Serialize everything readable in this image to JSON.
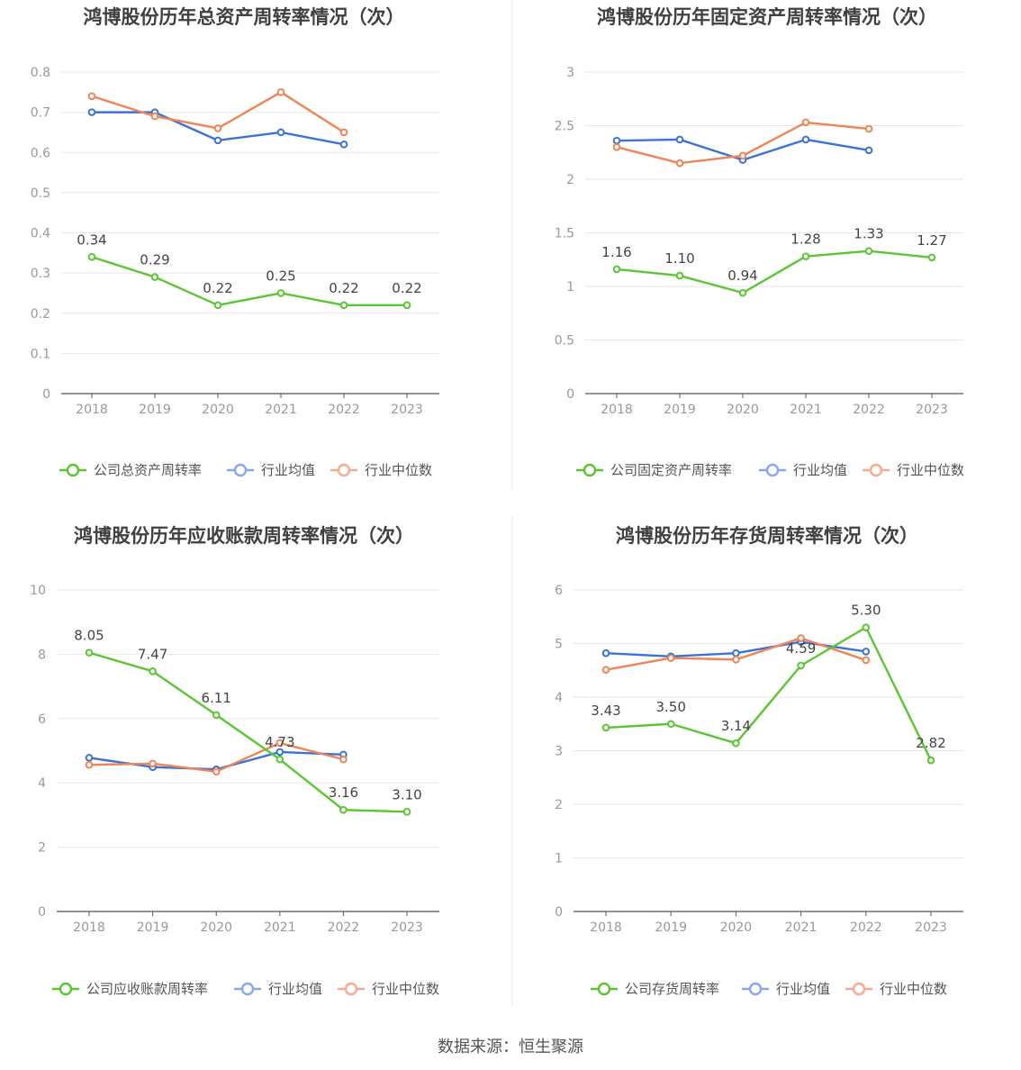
{
  "colors": {
    "company": "#5ac632",
    "industry_avg": "#3a72d8",
    "industry_median": "#f08454",
    "legend_avg": "#87a8ea",
    "legend_median": "#f6ab90",
    "grid": "#e6e6ee",
    "axis": "#555555",
    "tick_text": "#999999",
    "title_text": "#404040",
    "divider": "#e8e8e8"
  },
  "source_text": "数据来源：恒生聚源",
  "chart_data": [
    {
      "type": "line",
      "title": "鸿博股份历年总资产周转率情况（次）",
      "categories": [
        "2018",
        "2019",
        "2020",
        "2021",
        "2022",
        "2023"
      ],
      "ylim": [
        0,
        0.8
      ],
      "yticks": [
        0,
        0.1,
        0.2,
        0.3,
        0.4,
        0.5,
        0.6,
        0.7,
        0.8
      ],
      "ytick_labels": [
        "0",
        "0.1",
        "0.2",
        "0.3",
        "0.4",
        "0.5",
        "0.6",
        "0.7",
        "0.8"
      ],
      "grid": true,
      "legend_position": "bottom",
      "series": [
        {
          "key": "company",
          "name": "公司总资产周转率",
          "values": [
            0.34,
            0.29,
            0.22,
            0.25,
            0.22,
            0.22
          ],
          "labels": [
            "0.34",
            "0.29",
            "0.22",
            "0.25",
            "0.22",
            "0.22"
          ]
        },
        {
          "key": "industry_avg",
          "name": "行业均值",
          "values": [
            0.7,
            0.7,
            0.63,
            0.65,
            0.62,
            null
          ]
        },
        {
          "key": "industry_median",
          "name": "行业中位数",
          "values": [
            0.74,
            0.69,
            0.66,
            0.75,
            0.65,
            null
          ]
        }
      ]
    },
    {
      "type": "line",
      "title": "鸿博股份历年固定资产周转率情况（次）",
      "categories": [
        "2018",
        "2019",
        "2020",
        "2021",
        "2022",
        "2023"
      ],
      "ylim": [
        0,
        3
      ],
      "yticks": [
        0,
        0.5,
        1,
        1.5,
        2,
        2.5,
        3
      ],
      "ytick_labels": [
        "0",
        "0.5",
        "1",
        "1.5",
        "2",
        "2.5",
        "3"
      ],
      "grid": true,
      "legend_position": "bottom",
      "series": [
        {
          "key": "company",
          "name": "公司固定资产周转率",
          "values": [
            1.16,
            1.1,
            0.94,
            1.28,
            1.33,
            1.27
          ],
          "labels": [
            "1.16",
            "1.10",
            "0.94",
            "1.28",
            "1.33",
            "1.27"
          ]
        },
        {
          "key": "industry_avg",
          "name": "行业均值",
          "values": [
            2.36,
            2.37,
            2.18,
            2.37,
            2.27,
            null
          ]
        },
        {
          "key": "industry_median",
          "name": "行业中位数",
          "values": [
            2.3,
            2.15,
            2.22,
            2.53,
            2.47,
            null
          ]
        }
      ]
    },
    {
      "type": "line",
      "title": "鸿博股份历年应收账款周转率情况（次）",
      "categories": [
        "2018",
        "2019",
        "2020",
        "2021",
        "2022",
        "2023"
      ],
      "ylim": [
        0,
        10
      ],
      "yticks": [
        0,
        2,
        4,
        6,
        8,
        10
      ],
      "ytick_labels": [
        "0",
        "2",
        "4",
        "6",
        "8",
        "10"
      ],
      "grid": true,
      "legend_position": "bottom",
      "series": [
        {
          "key": "company",
          "name": "公司应收账款周转率",
          "values": [
            8.05,
            7.47,
            6.11,
            4.73,
            3.16,
            3.1
          ],
          "labels": [
            "8.05",
            "7.47",
            "6.11",
            "4.73",
            "3.16",
            "3.10"
          ]
        },
        {
          "key": "industry_avg",
          "name": "行业均值",
          "values": [
            4.78,
            4.49,
            4.42,
            4.96,
            4.88,
            null
          ]
        },
        {
          "key": "industry_median",
          "name": "行业中位数",
          "values": [
            4.56,
            4.6,
            4.35,
            5.24,
            4.73,
            null
          ]
        }
      ]
    },
    {
      "type": "line",
      "title": "鸿博股份历年存货周转率情况（次）",
      "categories": [
        "2018",
        "2019",
        "2020",
        "2021",
        "2022",
        "2023"
      ],
      "ylim": [
        0,
        6
      ],
      "yticks": [
        0,
        1,
        2,
        3,
        4,
        5,
        6
      ],
      "ytick_labels": [
        "0",
        "1",
        "2",
        "3",
        "4",
        "5",
        "6"
      ],
      "grid": true,
      "legend_position": "bottom",
      "series": [
        {
          "key": "company",
          "name": "公司存货周转率",
          "values": [
            3.43,
            3.5,
            3.14,
            4.59,
            5.3,
            2.82
          ],
          "labels": [
            "3.43",
            "3.50",
            "3.14",
            "4.59",
            "5.30",
            "2.82"
          ]
        },
        {
          "key": "industry_avg",
          "name": "行业均值",
          "values": [
            4.82,
            4.76,
            4.82,
            5.03,
            4.85,
            null
          ]
        },
        {
          "key": "industry_median",
          "name": "行业中位数",
          "values": [
            4.51,
            4.73,
            4.7,
            5.1,
            4.69,
            null
          ]
        }
      ]
    }
  ]
}
